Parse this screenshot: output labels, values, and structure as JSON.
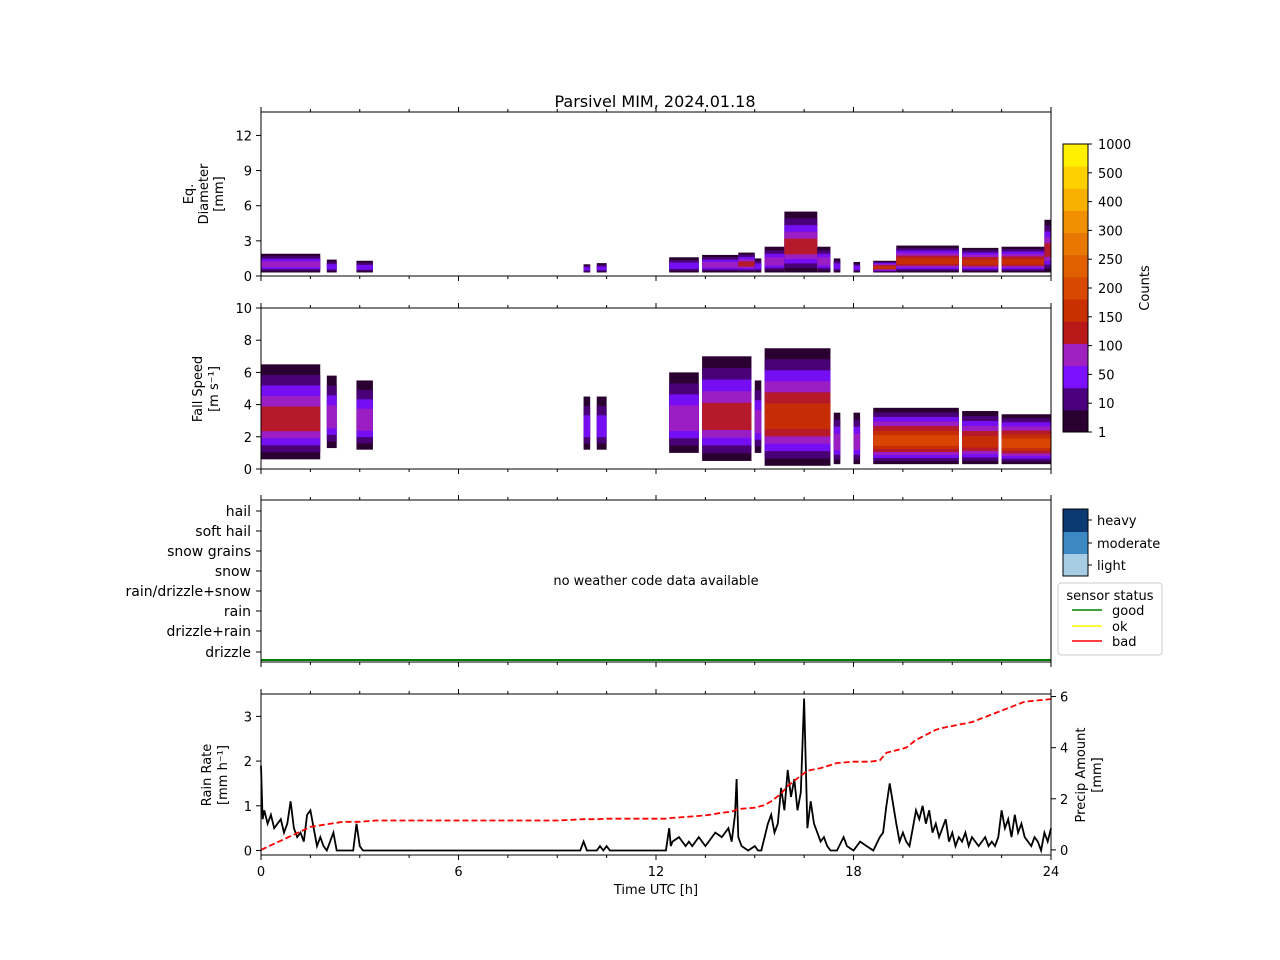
{
  "title": "Parsivel MIM, 2024.01.18",
  "colors": {
    "counts_scale": [
      "#2a0030",
      "#4c0080",
      "#7a10ff",
      "#a020c0",
      "#b81818",
      "#c83000",
      "#d84800",
      "#e06000",
      "#e87800",
      "#f09000",
      "#f8b000",
      "#ffd000",
      "#fff000"
    ],
    "intensity": {
      "light": "#a6cde4",
      "moderate": "#3b88c3",
      "heavy": "#0b3a72"
    },
    "status": {
      "good": "#008000",
      "ok": "#ffff00",
      "bad": "#ff0000"
    },
    "rain_rate": "#000000",
    "precip_amount": "#ff0000"
  },
  "chart_data": [
    {
      "type": "heatmap",
      "name": "diameter",
      "ylabel": [
        "Eq.",
        "Diameter",
        "[mm]"
      ],
      "ylim": [
        0,
        14
      ],
      "yticks": [
        "0",
        "3",
        "6",
        "9",
        "12"
      ],
      "x_range": [
        0,
        24
      ],
      "segments": [
        {
          "t0": 0.0,
          "t1": 1.8,
          "top": 1.9,
          "bottom": 0.3,
          "level": 3
        },
        {
          "t0": 2.0,
          "t1": 2.3,
          "top": 1.4,
          "bottom": 0.3,
          "level": 2
        },
        {
          "t0": 2.9,
          "t1": 3.4,
          "top": 1.3,
          "bottom": 0.3,
          "level": 2
        },
        {
          "t0": 9.8,
          "t1": 10.0,
          "top": 1.0,
          "bottom": 0.3,
          "level": 2
        },
        {
          "t0": 10.2,
          "t1": 10.5,
          "top": 1.1,
          "bottom": 0.3,
          "level": 2
        },
        {
          "t0": 12.4,
          "t1": 13.3,
          "top": 1.6,
          "bottom": 0.3,
          "level": 2
        },
        {
          "t0": 13.4,
          "t1": 14.5,
          "top": 1.8,
          "bottom": 0.3,
          "level": 3
        },
        {
          "t0": 14.5,
          "t1": 15.0,
          "top": 2.0,
          "bottom": 0.3,
          "level": 4
        },
        {
          "t0": 15.0,
          "t1": 15.2,
          "top": 1.5,
          "bottom": 0.3,
          "level": 2
        },
        {
          "t0": 15.3,
          "t1": 15.9,
          "top": 2.5,
          "bottom": 0.3,
          "level": 3
        },
        {
          "t0": 15.9,
          "t1": 16.9,
          "top": 5.5,
          "bottom": 0.3,
          "level": 4
        },
        {
          "t0": 16.9,
          "t1": 17.3,
          "top": 2.5,
          "bottom": 0.3,
          "level": 3
        },
        {
          "t0": 17.4,
          "t1": 17.6,
          "top": 1.5,
          "bottom": 0.3,
          "level": 2
        },
        {
          "t0": 18.0,
          "t1": 18.2,
          "top": 1.2,
          "bottom": 0.3,
          "level": 2
        },
        {
          "t0": 18.6,
          "t1": 19.3,
          "top": 1.3,
          "bottom": 0.3,
          "level": 5
        },
        {
          "t0": 19.3,
          "t1": 21.2,
          "top": 2.6,
          "bottom": 0.3,
          "level": 5
        },
        {
          "t0": 21.3,
          "t1": 22.4,
          "top": 2.4,
          "bottom": 0.3,
          "level": 5
        },
        {
          "t0": 22.5,
          "t1": 23.9,
          "top": 2.5,
          "bottom": 0.3,
          "level": 5
        },
        {
          "t0": 23.8,
          "t1": 24.0,
          "top": 4.8,
          "bottom": 0.3,
          "level": 4
        }
      ]
    },
    {
      "type": "heatmap",
      "name": "fall_speed",
      "ylabel": [
        "Fall Speed",
        "[m s⁻¹]"
      ],
      "ylim": [
        0,
        10
      ],
      "yticks": [
        "0",
        "2",
        "4",
        "6",
        "8",
        "10"
      ],
      "x_range": [
        0,
        24
      ],
      "segments": [
        {
          "t0": 0.0,
          "t1": 1.8,
          "top": 6.5,
          "bottom": 0.6,
          "level": 4
        },
        {
          "t0": 2.0,
          "t1": 2.3,
          "top": 5.8,
          "bottom": 1.3,
          "level": 3
        },
        {
          "t0": 2.9,
          "t1": 3.4,
          "top": 5.5,
          "bottom": 1.2,
          "level": 3
        },
        {
          "t0": 9.8,
          "t1": 10.0,
          "top": 4.5,
          "bottom": 1.2,
          "level": 2
        },
        {
          "t0": 10.2,
          "t1": 10.5,
          "top": 4.5,
          "bottom": 1.2,
          "level": 2
        },
        {
          "t0": 12.4,
          "t1": 13.3,
          "top": 6.0,
          "bottom": 1.0,
          "level": 3
        },
        {
          "t0": 13.4,
          "t1": 14.9,
          "top": 7.0,
          "bottom": 0.5,
          "level": 4
        },
        {
          "t0": 15.0,
          "t1": 15.2,
          "top": 5.5,
          "bottom": 1.0,
          "level": 3
        },
        {
          "t0": 15.3,
          "t1": 17.3,
          "top": 7.5,
          "bottom": 0.2,
          "level": 5
        },
        {
          "t0": 17.4,
          "t1": 17.6,
          "top": 3.5,
          "bottom": 0.3,
          "level": 3
        },
        {
          "t0": 18.0,
          "t1": 18.2,
          "top": 3.5,
          "bottom": 0.3,
          "level": 3
        },
        {
          "t0": 18.6,
          "t1": 21.2,
          "top": 3.8,
          "bottom": 0.3,
          "level": 6
        },
        {
          "t0": 21.3,
          "t1": 22.4,
          "top": 3.6,
          "bottom": 0.3,
          "level": 5
        },
        {
          "t0": 22.5,
          "t1": 24.0,
          "top": 3.4,
          "bottom": 0.3,
          "level": 6
        }
      ]
    },
    {
      "type": "categorical-timeline",
      "name": "weather_code",
      "categories": [
        "hail",
        "soft hail",
        "snow grains",
        "snow",
        "rain/drizzle+snow",
        "rain",
        "drizzle+rain",
        "drizzle"
      ],
      "message": "no weather code data available",
      "sensor_status": [
        {
          "t0": 0,
          "t1": 24,
          "status": "good"
        }
      ],
      "x_range": [
        0,
        24
      ]
    },
    {
      "type": "line",
      "name": "rain_rate",
      "ylabel": [
        "Rain Rate",
        "[mm h⁻¹]"
      ],
      "ylim": [
        -0.1,
        3.5
      ],
      "yticks": [
        "0",
        "1",
        "2",
        "3"
      ],
      "y2label": [
        "Precip Amount",
        "[mm]"
      ],
      "y2lim": [
        -0.2,
        6.1
      ],
      "y2ticks": [
        "0",
        "2",
        "4",
        "6"
      ],
      "xlabel": "Time UTC [h]",
      "xticks": [
        "0",
        "6",
        "12",
        "18",
        "24"
      ],
      "xlim": [
        0,
        24
      ],
      "series": [
        {
          "name": "rain_rate",
          "axis": "left",
          "style": "solid",
          "x": [
            0,
            0.05,
            0.1,
            0.2,
            0.3,
            0.4,
            0.5,
            0.6,
            0.7,
            0.8,
            0.9,
            1.0,
            1.1,
            1.2,
            1.3,
            1.4,
            1.5,
            1.6,
            1.7,
            1.8,
            1.9,
            2.0,
            2.1,
            2.2,
            2.3,
            2.5,
            2.8,
            2.9,
            3.0,
            3.1,
            3.3,
            3.5,
            4.0,
            6.0,
            9.0,
            9.7,
            9.8,
            9.9,
            10.0,
            10.2,
            10.3,
            10.4,
            10.5,
            10.6,
            12.3,
            12.4,
            12.45,
            12.5,
            12.7,
            12.9,
            13.0,
            13.1,
            13.3,
            13.5,
            13.6,
            13.8,
            14.0,
            14.2,
            14.3,
            14.4,
            14.45,
            14.5,
            14.6,
            14.8,
            15.0,
            15.1,
            15.2,
            15.3,
            15.4,
            15.5,
            15.6,
            15.7,
            15.8,
            15.9,
            16.0,
            16.1,
            16.2,
            16.3,
            16.4,
            16.5,
            16.6,
            16.7,
            16.8,
            16.9,
            17.0,
            17.1,
            17.2,
            17.3,
            17.5,
            17.7,
            17.8,
            18.0,
            18.2,
            18.4,
            18.6,
            18.8,
            18.9,
            19.0,
            19.1,
            19.3,
            19.4,
            19.5,
            19.6,
            19.7,
            19.8,
            19.9,
            20.0,
            20.1,
            20.2,
            20.3,
            20.4,
            20.5,
            20.6,
            20.7,
            20.8,
            20.9,
            21.0,
            21.1,
            21.2,
            21.3,
            21.4,
            21.5,
            21.6,
            21.7,
            21.8,
            21.9,
            22.0,
            22.1,
            22.2,
            22.3,
            22.4,
            22.5,
            22.6,
            22.7,
            22.8,
            22.9,
            23.0,
            23.1,
            23.2,
            23.3,
            23.4,
            23.5,
            23.6,
            23.7,
            23.8,
            23.9,
            24.0
          ],
          "y": [
            1.9,
            0.7,
            0.9,
            0.6,
            0.8,
            0.5,
            0.6,
            0.7,
            0.4,
            0.6,
            1.1,
            0.5,
            0.3,
            0.4,
            0.2,
            0.8,
            0.9,
            0.5,
            0.1,
            0.3,
            0.1,
            0.0,
            0.2,
            0.4,
            0.0,
            0.0,
            0.0,
            0.6,
            0.1,
            0.0,
            0.0,
            0.0,
            0.0,
            0.0,
            0.0,
            0.0,
            0.2,
            0.0,
            0.0,
            0.0,
            0.1,
            0.0,
            0.1,
            0.0,
            0.0,
            0.5,
            0.1,
            0.2,
            0.3,
            0.1,
            0.2,
            0.1,
            0.3,
            0.1,
            0.2,
            0.4,
            0.3,
            0.5,
            0.2,
            0.8,
            1.6,
            0.3,
            0.1,
            0.0,
            0.1,
            0.0,
            0.0,
            0.3,
            0.6,
            0.8,
            0.4,
            0.6,
            1.4,
            0.9,
            1.8,
            1.2,
            1.6,
            0.9,
            1.3,
            3.4,
            0.5,
            1.1,
            0.6,
            0.4,
            0.2,
            0.3,
            0.1,
            0.0,
            0.0,
            0.3,
            0.1,
            0.0,
            0.2,
            0.1,
            0.0,
            0.3,
            0.4,
            1.0,
            1.5,
            0.6,
            0.2,
            0.4,
            0.2,
            0.1,
            0.5,
            0.9,
            0.7,
            1.0,
            0.6,
            0.9,
            0.4,
            0.6,
            0.3,
            0.5,
            0.7,
            0.2,
            0.4,
            0.1,
            0.3,
            0.2,
            0.4,
            0.1,
            0.3,
            0.2,
            0.1,
            0.2,
            0.3,
            0.1,
            0.2,
            0.1,
            0.3,
            0.9,
            0.5,
            0.7,
            0.3,
            0.8,
            0.4,
            0.6,
            0.3,
            0.2,
            0.1,
            0.3,
            0.2,
            0.0,
            0.4,
            0.2,
            0.5
          ]
        },
        {
          "name": "precip_amount",
          "axis": "right",
          "style": "dashed",
          "x": [
            0,
            0.5,
            1.0,
            1.5,
            2.0,
            2.5,
            3.0,
            3.5,
            6.0,
            9.0,
            9.8,
            10.2,
            10.5,
            12.3,
            12.5,
            13.0,
            13.5,
            14.0,
            14.3,
            14.5,
            15.0,
            15.3,
            15.5,
            15.8,
            16.0,
            16.3,
            16.6,
            17.0,
            17.5,
            18.0,
            18.5,
            18.8,
            19.0,
            19.3,
            19.6,
            19.9,
            20.2,
            20.5,
            20.8,
            21.2,
            21.6,
            22.0,
            22.4,
            22.8,
            23.2,
            23.6,
            24.0
          ],
          "y": [
            0.0,
            0.3,
            0.6,
            0.9,
            1.0,
            1.1,
            1.1,
            1.15,
            1.15,
            1.15,
            1.2,
            1.2,
            1.22,
            1.22,
            1.25,
            1.3,
            1.35,
            1.45,
            1.5,
            1.6,
            1.65,
            1.75,
            1.9,
            2.2,
            2.5,
            2.8,
            3.1,
            3.2,
            3.4,
            3.45,
            3.45,
            3.5,
            3.8,
            3.9,
            4.0,
            4.3,
            4.5,
            4.7,
            4.8,
            4.9,
            5.0,
            5.2,
            5.4,
            5.6,
            5.8,
            5.85,
            5.9
          ]
        }
      ]
    }
  ],
  "colorbar": {
    "label": "Counts",
    "ticks": [
      "1",
      "10",
      "50",
      "100",
      "150",
      "200",
      "250",
      "300",
      "400",
      "500",
      "1000"
    ]
  },
  "intensity_legend": {
    "labels": [
      "heavy",
      "moderate",
      "light"
    ]
  },
  "status_legend": {
    "title": "sensor status",
    "entries": [
      "good",
      "ok",
      "bad"
    ]
  }
}
